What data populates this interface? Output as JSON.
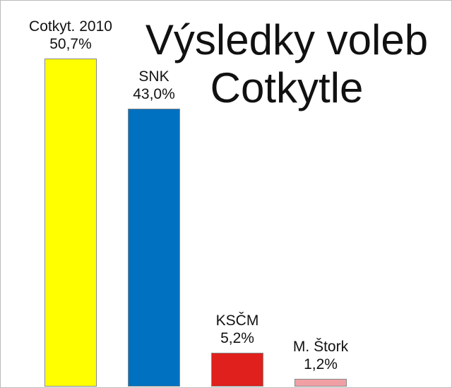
{
  "chart_data": {
    "type": "bar",
    "title": "Výsledky voleb Cotkytle",
    "categories": [
      "Cotkyt. 2010",
      "SNK",
      "KSČM",
      "M. Štork"
    ],
    "values": [
      50.7,
      43.0,
      5.2,
      1.2
    ],
    "value_labels": [
      "50,7%",
      "43,0%",
      "5,2%",
      "1,2%"
    ],
    "colors": [
      "#ffff00",
      "#0070c0",
      "#e0201c",
      "#f0a0a4"
    ]
  }
}
